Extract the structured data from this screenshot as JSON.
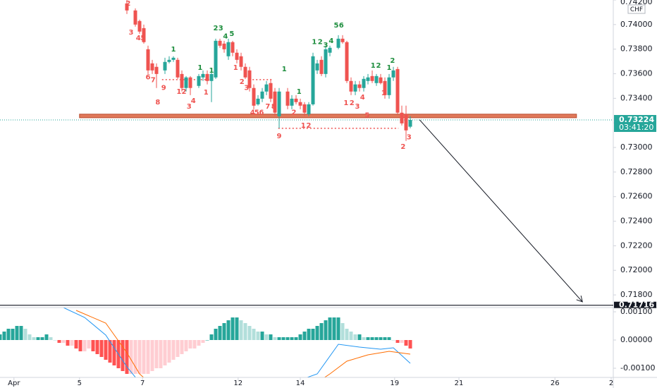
{
  "chart_data": [
    {
      "type": "candlestick",
      "xlim": [
        0,
        145
      ],
      "ylim": [
        0.7172,
        0.742
      ],
      "yticks": [
        {
          "value": 0.742,
          "label": "0.74200"
        },
        {
          "value": 0.74,
          "label": "0.74000"
        },
        {
          "value": 0.738,
          "label": "0.73800"
        },
        {
          "value": 0.736,
          "label": "0.73600"
        },
        {
          "value": 0.734,
          "label": "0.73400"
        },
        {
          "value": 0.732,
          "label": "0.73200"
        },
        {
          "value": 0.73,
          "label": "0.73000"
        },
        {
          "value": 0.728,
          "label": "0.72800"
        },
        {
          "value": 0.726,
          "label": "0.72600"
        },
        {
          "value": 0.724,
          "label": "0.72400"
        },
        {
          "value": 0.722,
          "label": "0.72200"
        },
        {
          "value": 0.72,
          "label": "0.72000"
        },
        {
          "value": 0.718,
          "label": "0.71800"
        }
      ],
      "grid": false,
      "currency": "CHF",
      "up_color": "#26a69a",
      "down_color": "#ef5350",
      "x": [
        30,
        32,
        33,
        34,
        35,
        36,
        37,
        39,
        40,
        41,
        42,
        43,
        44,
        45,
        47,
        48,
        49,
        50,
        51,
        52,
        53,
        54,
        55,
        56,
        57,
        58,
        59,
        60,
        61,
        62,
        63,
        64,
        65,
        66,
        68,
        69,
        70,
        71,
        72,
        73,
        74,
        75,
        76,
        77,
        78,
        80,
        81,
        82,
        83,
        84,
        85,
        86,
        87,
        88,
        89,
        90,
        91,
        92,
        93,
        94,
        95,
        96,
        97
      ],
      "open": [
        0.74172,
        0.74115,
        0.74029,
        0.73971,
        0.73799,
        0.73684,
        0.73656,
        0.73627,
        0.73696,
        0.73713,
        0.73713,
        0.73598,
        0.73484,
        0.7357,
        0.73501,
        0.7357,
        0.73598,
        0.73541,
        0.7357,
        0.73868,
        0.73845,
        0.73742,
        0.73857,
        0.73771,
        0.73742,
        0.73656,
        0.73627,
        0.73484,
        0.73351,
        0.73397,
        0.73455,
        0.73524,
        0.73455,
        0.73254,
        0.73455,
        0.7334,
        0.73397,
        0.73369,
        0.73351,
        0.73271,
        0.73351,
        0.73627,
        0.73713,
        0.73598,
        0.73771,
        0.73811,
        0.73885,
        0.73857,
        0.73541,
        0.73455,
        0.73513,
        0.73484,
        0.73541,
        0.73581,
        0.73524,
        0.7357,
        0.73541,
        0.73426,
        0.7357,
        0.73638,
        0.73283,
        0.73271,
        0.73169
      ],
      "high": [
        0.74201,
        0.74132,
        0.7404,
        0.74,
        0.73828,
        0.73713,
        0.73684,
        0.7373,
        0.73742,
        0.73742,
        0.7373,
        0.73627,
        0.73581,
        0.73581,
        0.73598,
        0.73627,
        0.73627,
        0.73627,
        0.73885,
        0.73885,
        0.73868,
        0.73885,
        0.73868,
        0.73799,
        0.73771,
        0.73684,
        0.73656,
        0.73513,
        0.73426,
        0.73484,
        0.73541,
        0.73558,
        0.73484,
        0.73484,
        0.73484,
        0.73426,
        0.73426,
        0.73397,
        0.73369,
        0.73369,
        0.73771,
        0.73713,
        0.73742,
        0.73828,
        0.73828,
        0.73914,
        0.73914,
        0.73868,
        0.7357,
        0.73541,
        0.73541,
        0.73581,
        0.73598,
        0.73627,
        0.73598,
        0.73598,
        0.7357,
        0.73598,
        0.73656,
        0.73656,
        0.7334,
        0.7334,
        0.73254
      ],
      "low": [
        0.74086,
        0.73983,
        0.73925,
        0.73845,
        0.73598,
        0.73598,
        0.73484,
        0.73598,
        0.73684,
        0.73696,
        0.73558,
        0.73455,
        0.73455,
        0.73426,
        0.73484,
        0.73541,
        0.73513,
        0.73369,
        0.73558,
        0.73811,
        0.73771,
        0.73713,
        0.73742,
        0.73684,
        0.73627,
        0.73558,
        0.73455,
        0.73311,
        0.7334,
        0.73369,
        0.73426,
        0.73369,
        0.73254,
        0.73156,
        0.73311,
        0.73311,
        0.73351,
        0.73311,
        0.73254,
        0.73254,
        0.7334,
        0.73598,
        0.73581,
        0.7357,
        0.73742,
        0.73799,
        0.73845,
        0.73524,
        0.73426,
        0.73426,
        0.73455,
        0.73455,
        0.73513,
        0.73524,
        0.73501,
        0.73513,
        0.73397,
        0.73397,
        0.73541,
        0.73271,
        0.73179,
        0.73053,
        0.73156
      ],
      "close": [
        0.74115,
        0.74,
        0.73943,
        0.73857,
        0.73627,
        0.73627,
        0.73598,
        0.73696,
        0.73713,
        0.7373,
        0.7357,
        0.73484,
        0.7357,
        0.73484,
        0.73581,
        0.73598,
        0.73541,
        0.73598,
        0.73868,
        0.73828,
        0.73799,
        0.73857,
        0.73771,
        0.73713,
        0.73656,
        0.7357,
        0.73484,
        0.7334,
        0.73397,
        0.73455,
        0.73513,
        0.73397,
        0.73283,
        0.73455,
        0.7334,
        0.73397,
        0.73369,
        0.7334,
        0.73283,
        0.73351,
        0.73742,
        0.73684,
        0.73598,
        0.73799,
        0.73811,
        0.73885,
        0.73857,
        0.73541,
        0.73455,
        0.73513,
        0.73484,
        0.73558,
        0.7357,
        0.73541,
        0.73581,
        0.73524,
        0.73426,
        0.7357,
        0.73627,
        0.73283,
        0.73196,
        0.73139,
        0.73224
      ],
      "td_down": {
        "color": "#ef5350",
        "labels": [
          "2",
          "3",
          "4",
          "5",
          "6",
          "7",
          "8",
          "9",
          "1",
          "2",
          "3",
          "4",
          "1",
          "1",
          "2",
          "3",
          "4",
          "5",
          "6",
          "7",
          "8",
          "9",
          "2",
          "1",
          "2",
          "1",
          "2",
          "3",
          "4",
          "5",
          "1",
          "2",
          "3"
        ],
        "x": [
          30.3,
          31,
          32.7,
          33.8,
          35,
          36.2,
          37.3,
          38.7,
          42.3,
          43.5,
          44.7,
          45.7,
          48.7,
          55.7,
          57.2,
          58.3,
          59.7,
          60.7,
          61.8,
          63.3,
          64.7,
          66,
          69.5,
          71.7,
          73,
          81.8,
          83.2,
          84.5,
          85.7,
          86.8,
          90.7,
          95.3,
          96.7
        ],
        "y": [
          0.74172,
          0.73937,
          0.73891,
          0.73891,
          0.7357,
          0.73547,
          0.73369,
          0.73484,
          0.73455,
          0.73455,
          0.73334,
          0.7338,
          0.73449,
          0.7365,
          0.73535,
          0.73484,
          0.73283,
          0.73283,
          0.73283,
          0.73334,
          0.73334,
          0.73093,
          0.73283,
          0.73179,
          0.73179,
          0.73363,
          0.73363,
          0.73334,
          0.73409,
          0.7326,
          0.73443,
          0.73007,
          0.73082
        ]
      },
      "td_up": {
        "color": "#1e8e3e",
        "labels": [
          "1",
          "1",
          "1",
          "2",
          "3",
          "4",
          "5",
          "1",
          "1",
          "1",
          "2",
          "3",
          "4",
          "5",
          "6",
          "1",
          "2",
          "1",
          "2"
        ],
        "x": [
          41,
          47.3,
          50,
          51,
          52.2,
          53.3,
          54.8,
          67.2,
          70.7,
          74.3,
          75.7,
          77,
          78.3,
          79.5,
          80.7,
          88.2,
          89.5,
          92,
          92.8
        ],
        "y": [
          0.73799,
          0.7365,
          0.73627,
          0.73971,
          0.73971,
          0.73903,
          0.73925,
          0.73638,
          0.73455,
          0.73857,
          0.73857,
          0.73834,
          0.73868,
          0.73994,
          0.73994,
          0.73667,
          0.73667,
          0.7365,
          0.73707
        ]
      },
      "td_levels": [
        {
          "x": [
            38.3,
            50
          ],
          "value": 0.73552
        },
        {
          "x": [
            59.7,
            64.2
          ],
          "value": 0.73552
        },
        {
          "x": [
            65.8,
            94.2
          ],
          "value": 0.73156
        }
      ],
      "zone": {
        "x": [
          18.8,
          136.3
        ],
        "y": [
          0.73242,
          0.73271
        ],
        "color": "#e0795a"
      },
      "arrow": {
        "x": [
          99.2,
          137.7
        ],
        "y": [
          0.73225,
          0.71744
        ]
      },
      "last_price": {
        "value": 0.73224,
        "label": "0.73224",
        "countdown": "03:41:20",
        "color": "#26a69a"
      },
      "target": {
        "value": 0.71716,
        "label": "0.71716"
      }
    },
    {
      "type": "macd",
      "xlim": [
        0,
        145
      ],
      "ylim": [
        -0.001325,
        0.00115
      ],
      "yticks": [
        {
          "value": 0.001,
          "label": "0.00100"
        },
        {
          "value": 0,
          "label": "0.00000"
        },
        {
          "value": -0.001,
          "label": "-0.00100"
        }
      ],
      "xticks": [
        {
          "value": 3.3,
          "label": "Apr"
        },
        {
          "value": 18.8,
          "label": "5"
        },
        {
          "value": 33.7,
          "label": "7"
        },
        {
          "value": 56.3,
          "label": "12"
        },
        {
          "value": 71,
          "label": "14"
        },
        {
          "value": 93.3,
          "label": "19"
        },
        {
          "value": 108.5,
          "label": "21"
        },
        {
          "value": 131.2,
          "label": "26"
        },
        {
          "value": 144.5,
          "label": "2"
        }
      ],
      "hist_colors": {
        "rise_pos": "#26a69a",
        "fall_pos": "#b2dfdb",
        "fall_neg": "#ff5252",
        "rise_neg": "#ffcdd2"
      },
      "hist_x": [
        0,
        1,
        2,
        3,
        4,
        5,
        6,
        7,
        8,
        9,
        10,
        11,
        12,
        13,
        14,
        15,
        16,
        17,
        18,
        19,
        20,
        21,
        22,
        23,
        24,
        25,
        26,
        27,
        28,
        29,
        30,
        31,
        32,
        33,
        34,
        35,
        36,
        37,
        38,
        39,
        40,
        41,
        42,
        43,
        44,
        45,
        46,
        47,
        48,
        49,
        50,
        51,
        52,
        53,
        54,
        55,
        56,
        57,
        58,
        59,
        60,
        61,
        62,
        63,
        64,
        65,
        66,
        67,
        68,
        69,
        70,
        71,
        72,
        73,
        74,
        75,
        76,
        77,
        78,
        79,
        80,
        81,
        82,
        83,
        84,
        85,
        86,
        87,
        88,
        89,
        90,
        91,
        92,
        93,
        94,
        95,
        96,
        97
      ],
      "hist": [
        0.0002,
        0.0003,
        0.0004,
        0.0004,
        0.0005,
        0.0005,
        0.0004,
        0.0002,
        0.0001,
        0.0001,
        0.0001,
        0.0002,
        0.0001,
        0,
        -0.0001,
        -0.0001,
        -0.0002,
        -0.0002,
        -0.0003,
        -0.0004,
        -0.0004,
        -0.0003,
        -0.0004,
        -0.0005,
        -0.0006,
        -0.0007,
        -0.0008,
        -0.0009,
        -0.001,
        -0.0011,
        -0.0012,
        -0.0012,
        -0.0012,
        -0.0012,
        -0.0012,
        -0.0012,
        -0.0011,
        -0.001,
        -0.001,
        -0.0009,
        -0.0008,
        -0.0007,
        -0.0006,
        -0.0005,
        -0.0004,
        -0.0003,
        -0.0003,
        -0.0002,
        -0.0001,
        0,
        0.0002,
        0.0004,
        0.0005,
        0.0006,
        0.0007,
        0.0008,
        0.0008,
        0.0007,
        0.0006,
        0.0005,
        0.0004,
        0.0003,
        0.0003,
        0.0002,
        0.0002,
        0.0001,
        0.0001,
        0.0001,
        0.0001,
        0.0001,
        0.0001,
        0.0002,
        0.0003,
        0.0004,
        0.0004,
        0.0005,
        0.0006,
        0.0007,
        0.0008,
        0.0008,
        0.0008,
        0.0006,
        0.0004,
        0.0003,
        0.0002,
        0.0002,
        0.0001,
        0.0001,
        0.0001,
        0.0001,
        0.0001,
        0.0001,
        0.0001,
        0,
        -0.0001,
        -0.0001,
        -0.0002,
        -0.0003
      ],
      "series": [
        {
          "color": "#2196f3",
          "x": [
            12,
            15,
            20,
            25,
            30,
            33,
            45,
            60,
            75,
            80,
            85,
            90,
            93,
            97
          ],
          "values": [
            0.0014,
            0.00115,
            0.0008,
            0.000175,
            -0.00095,
            -0.0015,
            -0.002,
            -0.002,
            -0.0012,
            -0.00015,
            -0.00025,
            -0.000325,
            -0.000275,
            -0.000825
          ]
        },
        {
          "color": "#ff6d00",
          "x": [
            18,
            25,
            30,
            33,
            36,
            60,
            74,
            78,
            82,
            87,
            92,
            97
          ],
          "values": [
            0.00105,
            0.0006,
            -0.00045,
            -0.0012,
            -0.0016,
            -0.002,
            -0.0016,
            -0.0012,
            -0.00075,
            -0.000525,
            -0.0004,
            -0.0005
          ]
        }
      ]
    }
  ]
}
